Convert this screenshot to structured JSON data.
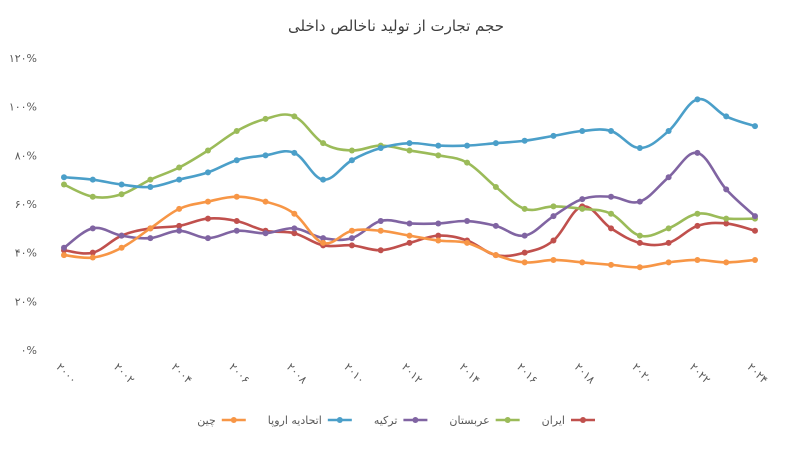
{
  "chart_data": {
    "type": "line",
    "title": "حجم تجارت از تولید ناخالص داخلی",
    "xlabel": "",
    "ylabel": "",
    "ylim": [
      0,
      120
    ],
    "y_ticks": [
      "۰%",
      "۲۰%",
      "۴۰%",
      "۶۰%",
      "۸۰%",
      "۱۰۰%",
      "۱۲۰%"
    ],
    "x": [
      2000,
      2001,
      2002,
      2003,
      2004,
      2005,
      2006,
      2007,
      2008,
      2009,
      2010,
      2011,
      2012,
      2013,
      2014,
      2015,
      2016,
      2017,
      2018,
      2019,
      2020,
      2021,
      2022,
      2023,
      2024
    ],
    "x_tick_labels": [
      "۲۰۰۰",
      "۲۰۰۲",
      "۲۰۰۴",
      "۲۰۰۶",
      "۲۰۰۸",
      "۲۰۱۰",
      "۲۰۱۲",
      "۲۰۱۴",
      "۲۰۱۶",
      "۲۰۱۸",
      "۲۰۲۰",
      "۲۰۲۲",
      "۲۰۲۴"
    ],
    "legend_position": "bottom",
    "grid": false,
    "series": [
      {
        "name": "ایران",
        "color": "#c0504d",
        "values": [
          41,
          40,
          47,
          50,
          51,
          54,
          53,
          49,
          48,
          43,
          43,
          41,
          44,
          47,
          45,
          39,
          40,
          45,
          59,
          50,
          44,
          44,
          51,
          52,
          49
        ]
      },
      {
        "name": "عربستان",
        "color": "#9bbb59",
        "values": [
          68,
          63,
          64,
          70,
          75,
          82,
          90,
          95,
          96,
          85,
          82,
          84,
          82,
          80,
          77,
          67,
          58,
          59,
          58,
          56,
          47,
          50,
          56,
          54,
          54
        ]
      },
      {
        "name": "ترکیه",
        "color": "#8064a2",
        "values": [
          42,
          50,
          47,
          46,
          49,
          46,
          49,
          48,
          50,
          46,
          46,
          53,
          52,
          52,
          53,
          51,
          47,
          55,
          62,
          63,
          61,
          71,
          81,
          66,
          55
        ]
      },
      {
        "name": "اتحادیه اروپا",
        "color": "#4b9fc9",
        "values": [
          71,
          70,
          68,
          67,
          70,
          73,
          78,
          80,
          81,
          70,
          78,
          83,
          85,
          84,
          84,
          85,
          86,
          88,
          90,
          90,
          83,
          90,
          103,
          96,
          92
        ]
      },
      {
        "name": "چین",
        "color": "#f79646",
        "values": [
          39,
          38,
          42,
          50,
          58,
          61,
          63,
          61,
          56,
          44,
          49,
          49,
          47,
          45,
          44,
          39,
          36,
          37,
          36,
          35,
          34,
          36,
          37,
          36,
          37
        ]
      }
    ]
  }
}
